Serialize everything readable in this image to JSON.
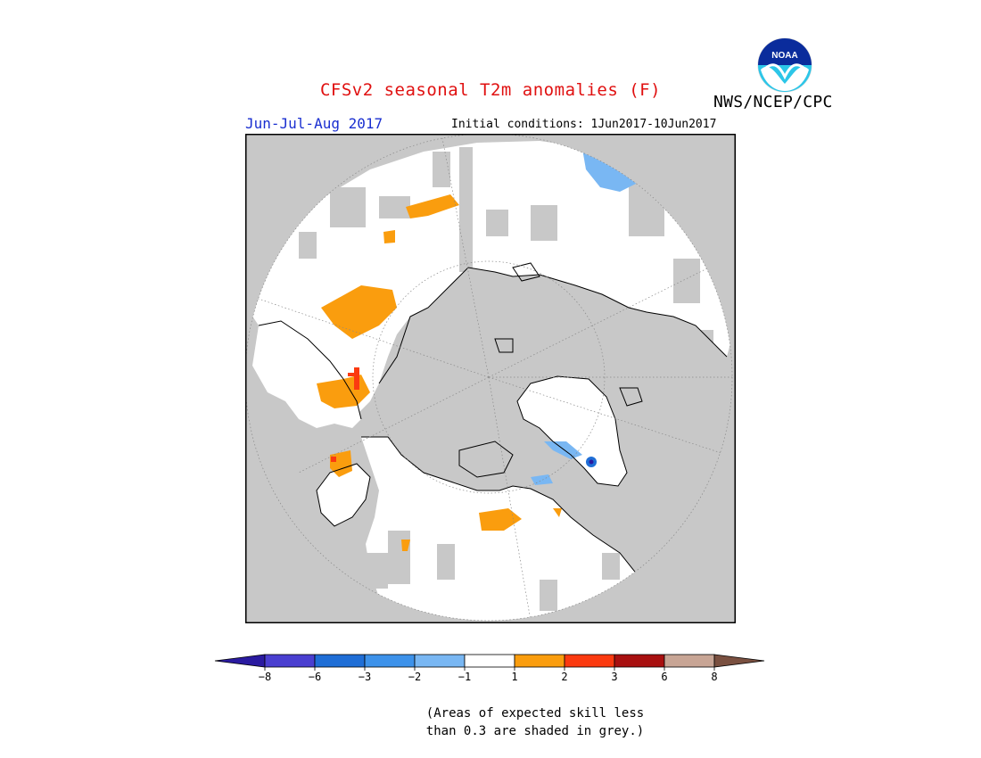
{
  "header": {
    "title": "CFSv2 seasonal T2m anomalies (F)",
    "period": "Jun-Jul-Aug 2017",
    "initial_conditions": "Initial conditions: 1Jun2017-10Jun2017",
    "agency": "NWS/NCEP/CPC",
    "logo_text": "NOAA"
  },
  "colors": {
    "title": "#e01010",
    "period": "#1a2fd0",
    "skill_mask_grey": "#c8c8c8",
    "ocean_land_neutral": "#ffffff"
  },
  "legend": {
    "bins": [
      {
        "color": "#2a1aa0"
      },
      {
        "color": "#4a3fd0"
      },
      {
        "color": "#1f6ed6"
      },
      {
        "color": "#3d92ea"
      },
      {
        "color": "#79b7f3"
      },
      {
        "color": "#ffffff"
      },
      {
        "color": "#fa9d0e"
      },
      {
        "color": "#fb3a10"
      },
      {
        "color": "#a81010"
      },
      {
        "color": "#c8a595"
      },
      {
        "color": "#7a5040"
      }
    ],
    "tick_labels": [
      "−8",
      "−6",
      "−3",
      "−2",
      "−1",
      "1",
      "2",
      "3",
      "6",
      "8"
    ]
  },
  "footnote": {
    "line1": "(Areas of expected skill less",
    "line2": "than 0.3 are shaded in grey.)"
  }
}
